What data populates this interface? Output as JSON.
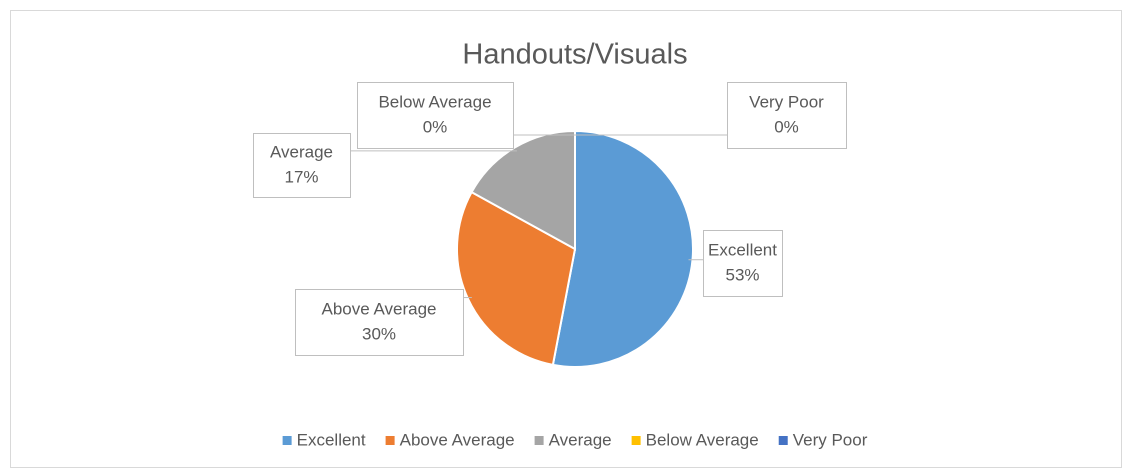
{
  "chart_data": {
    "type": "pie",
    "title": "Handouts/Visuals",
    "categories": [
      "Excellent",
      "Above Average",
      "Average",
      "Below Average",
      "Very Poor"
    ],
    "values": [
      53,
      30,
      17,
      0,
      0
    ],
    "value_labels": [
      "53%",
      "30%",
      "17%",
      "0%",
      "0%"
    ],
    "colors": [
      "#5b9bd5",
      "#ed7d31",
      "#a5a5a5",
      "#ffc000",
      "#4472c4"
    ],
    "legend": "bottom"
  }
}
